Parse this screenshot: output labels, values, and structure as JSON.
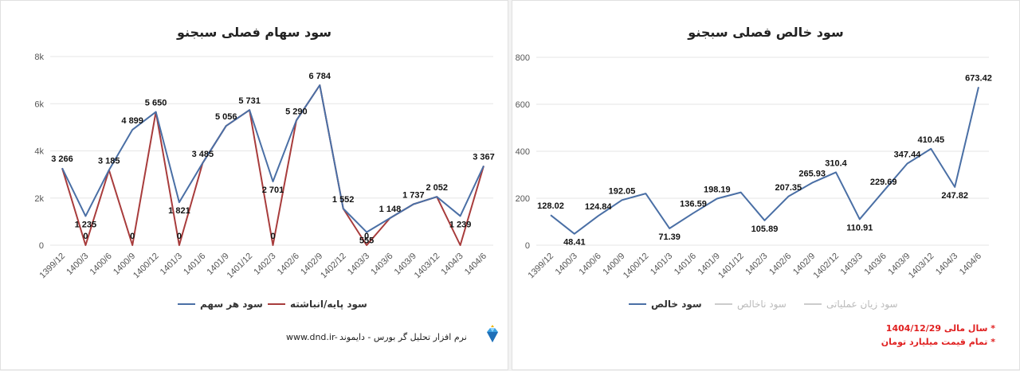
{
  "colors": {
    "blue": "#4a6fa5",
    "red": "#a83c3c",
    "grid": "#e6e6e6",
    "note": "#e02020"
  },
  "footer": {
    "software": "نرم افزار تحلیل گر بورس - دایموند",
    "website": "www.dnd.ir-",
    "logo_icon": "diamond-icon"
  },
  "notes": {
    "fiscal_year": "* سال مالی 1404/12/29",
    "currency": "* تمام قیمت میلیارد تومان"
  },
  "chart_data": [
    {
      "type": "line",
      "title": "سود سهام فصلی سبجنو",
      "categories": [
        "1399/12",
        "1400/3",
        "1400/6",
        "1400/9",
        "1400/12",
        "1401/3",
        "1401/6",
        "1401/9",
        "1401/12",
        "1402/3",
        "1402/6",
        "1402/9",
        "1402/12",
        "1403/3",
        "1403/6",
        "1403/9",
        "1403/12",
        "1404/3",
        "1404/6"
      ],
      "ylim": [
        0,
        8000
      ],
      "yticks": [
        0,
        2000,
        4000,
        6000,
        8000
      ],
      "ytick_labels": [
        "0",
        "2k",
        "4k",
        "6k",
        "8k"
      ],
      "grid": true,
      "series": [
        {
          "name": "سود هر سهم",
          "color": "#4a6fa5",
          "values": [
            3266,
            1235,
            3185,
            4899,
            5650,
            1821,
            3485,
            5056,
            5731,
            2701,
            5290,
            6784,
            1552,
            555,
            1148,
            1737,
            2052,
            1239,
            3367
          ]
        },
        {
          "name": "سود پایه/انباشته",
          "color": "#a83c3c",
          "values": [
            3266,
            0,
            3185,
            0,
            5650,
            0,
            3485,
            5056,
            5731,
            0,
            5290,
            6784,
            1552,
            0,
            1148,
            1737,
            2052,
            0,
            3367
          ]
        }
      ],
      "data_labels": [
        "3 266",
        "1 235",
        "3 185",
        "4 899",
        "5 650",
        "1 821",
        "3 485",
        "5 056",
        "5 731",
        "2 701",
        "5 290",
        "6 784",
        "1 552",
        "555",
        "1 148",
        "1 737",
        "2 052",
        "1 239",
        "3 367"
      ],
      "zero_labels": [
        "0",
        "0",
        "0",
        "0",
        "0"
      ]
    },
    {
      "type": "line",
      "title": "سود خالص فصلی سبجنو",
      "categories": [
        "1399/12",
        "1400/3",
        "1400/6",
        "1400/9",
        "1400/12",
        "1401/3",
        "1401/6",
        "1401/9",
        "1401/12",
        "1402/3",
        "1402/6",
        "1402/9",
        "1402/12",
        "1403/3",
        "1403/6",
        "1403/9",
        "1403/12",
        "1404/3",
        "1404/6"
      ],
      "ylim": [
        0,
        800
      ],
      "yticks": [
        0,
        200,
        400,
        600,
        800
      ],
      "ytick_labels": [
        "0",
        "200",
        "400",
        "600",
        "800"
      ],
      "grid": true,
      "series": [
        {
          "name": "سود خالص",
          "color": "#4a6fa5",
          "values": [
            128.02,
            48.41,
            124.84,
            192.05,
            220,
            71.39,
            136.59,
            198.19,
            225,
            105.89,
            207.35,
            265.93,
            310.4,
            110.91,
            229.69,
            347.44,
            410.45,
            247.82,
            673.42
          ]
        }
      ],
      "legend_extra": [
        "سود ناخالص",
        "سود زیان عملیاتی"
      ],
      "data_labels": [
        "128.02",
        "48.41",
        "124.84",
        "192.05",
        "",
        "71.39",
        "136.59",
        "198.19",
        "",
        "105.89",
        "207.35",
        "265.93",
        "310.4",
        "110.91",
        "229.69",
        "347.44",
        "410.45",
        "247.82",
        "673.42"
      ]
    }
  ]
}
